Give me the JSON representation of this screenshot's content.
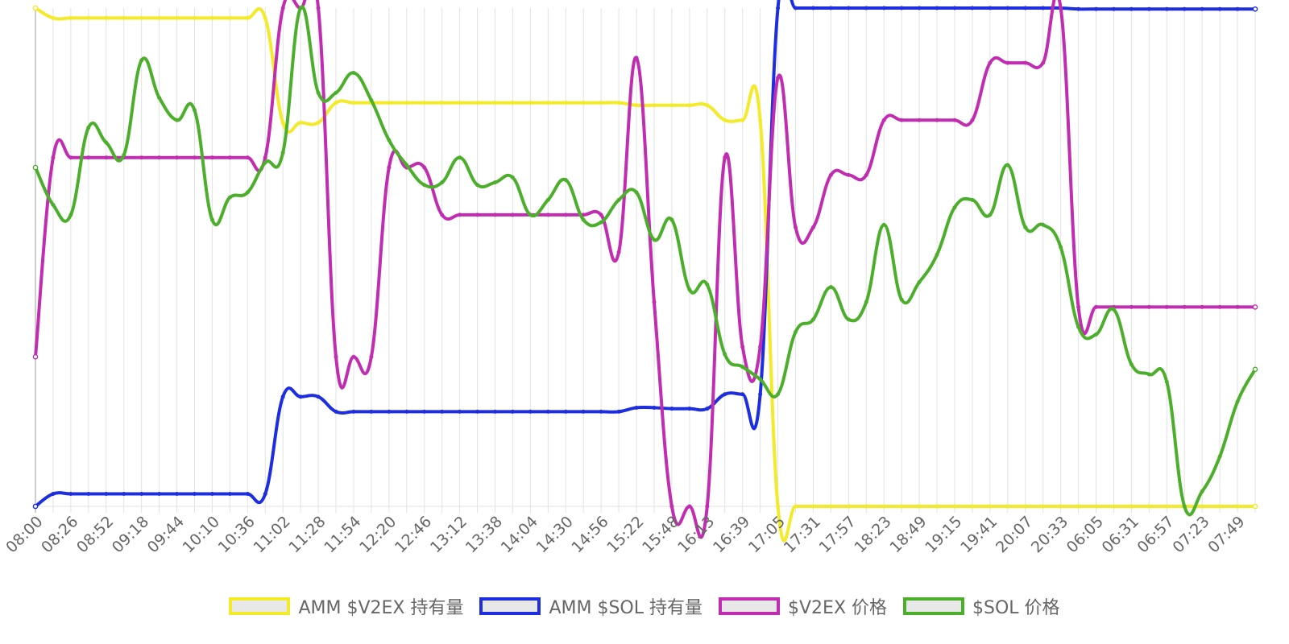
{
  "chart_data": {
    "type": "line",
    "x": [
      "08:00",
      "08:13",
      "08:26",
      "08:39",
      "08:52",
      "09:05",
      "09:18",
      "09:31",
      "09:44",
      "09:57",
      "10:10",
      "10:23",
      "10:36",
      "10:49",
      "11:02",
      "11:15",
      "11:28",
      "11:41",
      "11:54",
      "12:07",
      "12:20",
      "12:33",
      "12:46",
      "12:59",
      "13:12",
      "13:25",
      "13:38",
      "13:51",
      "14:04",
      "14:17",
      "14:30",
      "14:43",
      "14:56",
      "15:09",
      "15:22",
      "15:35",
      "15:48",
      "16:00",
      "16:13",
      "16:26",
      "16:39",
      "16:52",
      "17:05",
      "17:18",
      "17:31",
      "17:44",
      "17:57",
      "18:10",
      "18:23",
      "18:36",
      "18:49",
      "19:02",
      "19:15",
      "19:28",
      "19:41",
      "19:54",
      "20:07",
      "20:20",
      "20:33",
      "05:52",
      "06:05",
      "06:18",
      "06:31",
      "06:44",
      "06:57",
      "07:10",
      "07:23",
      "07:36",
      "07:49",
      "08:00"
    ],
    "xticks": [
      "08:00",
      "08:26",
      "08:52",
      "09:18",
      "09:44",
      "10:10",
      "10:36",
      "11:02",
      "11:28",
      "11:54",
      "12:20",
      "12:46",
      "13:12",
      "13:38",
      "14:04",
      "14:30",
      "14:56",
      "15:22",
      "15:48",
      "16:13",
      "16:39",
      "17:05",
      "17:31",
      "17:57",
      "18:23",
      "18:49",
      "19:15",
      "19:41",
      "20:07",
      "20:33",
      "06:05",
      "06:31",
      "06:57",
      "07:23",
      "07:49"
    ],
    "ylim": [
      0,
      100
    ],
    "grid": "vertical",
    "legend": "bottom",
    "yaxis_labels": "none",
    "series": [
      {
        "name": "AMM $V2EX 持有量",
        "color": "#f3ea2a",
        "values": [
          100,
          98,
          98,
          98,
          98,
          98,
          98,
          98,
          98,
          98,
          98,
          98,
          98,
          98,
          77,
          77,
          77,
          81,
          81,
          81,
          81,
          81,
          81,
          81,
          81,
          81,
          81,
          81,
          81,
          81,
          81,
          81,
          81,
          81,
          80.5,
          80.5,
          80.5,
          80.5,
          80.5,
          77.5,
          77.5,
          77.5,
          0,
          0,
          0,
          0,
          0,
          0,
          0,
          0,
          0,
          0,
          0,
          0,
          0,
          0,
          0,
          0,
          0,
          0,
          0,
          0,
          0,
          0,
          0,
          0,
          0,
          0,
          0,
          0
        ]
      },
      {
        "name": "AMM $SOL 持有量",
        "color": "#1c2ee0",
        "values": [
          0,
          2.5,
          2.5,
          2.5,
          2.5,
          2.5,
          2.5,
          2.5,
          2.5,
          2.5,
          2.5,
          2.5,
          2.5,
          2.5,
          22,
          22,
          22,
          19,
          19,
          19,
          19,
          19,
          19,
          19,
          19,
          19,
          19,
          19,
          19,
          19,
          19,
          19,
          19,
          19,
          19.8,
          19.8,
          19.6,
          19.6,
          19.6,
          22.5,
          22.5,
          22.5,
          100,
          100,
          100,
          100,
          100,
          100,
          100,
          100,
          100,
          100,
          100,
          100,
          100,
          100,
          100,
          100,
          100,
          99.8,
          99.8,
          99.8,
          99.8,
          99.8,
          99.8,
          99.8,
          99.8,
          99.8,
          99.8,
          99.8
        ]
      },
      {
        "name": "$V2EX 价格",
        "color": "#c12db0",
        "values": [
          30,
          70,
          70,
          70,
          70,
          70,
          70,
          70,
          70,
          70,
          70,
          70,
          70,
          70,
          100,
          100,
          100,
          30,
          30,
          30,
          68,
          68,
          68,
          58.5,
          58.5,
          58.5,
          58.5,
          58.5,
          58.5,
          58.5,
          58.5,
          58.5,
          58.5,
          51,
          90,
          41,
          0,
          0,
          0,
          70,
          32,
          32,
          86,
          56,
          56,
          66.5,
          66.5,
          66.5,
          77.5,
          77.5,
          77.5,
          77.5,
          77.5,
          77.5,
          89,
          89,
          89,
          89,
          100,
          40,
          40,
          40,
          40,
          40,
          40,
          40,
          40,
          40,
          40,
          40
        ]
      },
      {
        "name": "$SOL 价格",
        "color": "#4caf2c",
        "values": [
          68,
          60.5,
          58.5,
          76,
          73,
          70.5,
          89.5,
          82,
          77.5,
          79.5,
          57.5,
          62,
          63,
          69,
          71,
          100,
          83,
          83,
          87,
          81.5,
          73.5,
          68.5,
          64.5,
          65,
          70,
          64.5,
          65,
          66,
          58.5,
          61.5,
          65.5,
          57.5,
          57,
          61.5,
          63,
          53.5,
          57.5,
          43.5,
          44.5,
          30.5,
          28,
          25.5,
          22.5,
          35,
          37.5,
          44,
          37.5,
          41,
          56.5,
          41.5,
          45,
          50.5,
          60,
          61.5,
          58.5,
          68.5,
          56,
          56.5,
          52,
          36,
          34.5,
          39.5,
          28.5,
          26.5,
          25,
          0,
          3,
          10,
          21,
          27.5
        ]
      }
    ]
  }
}
